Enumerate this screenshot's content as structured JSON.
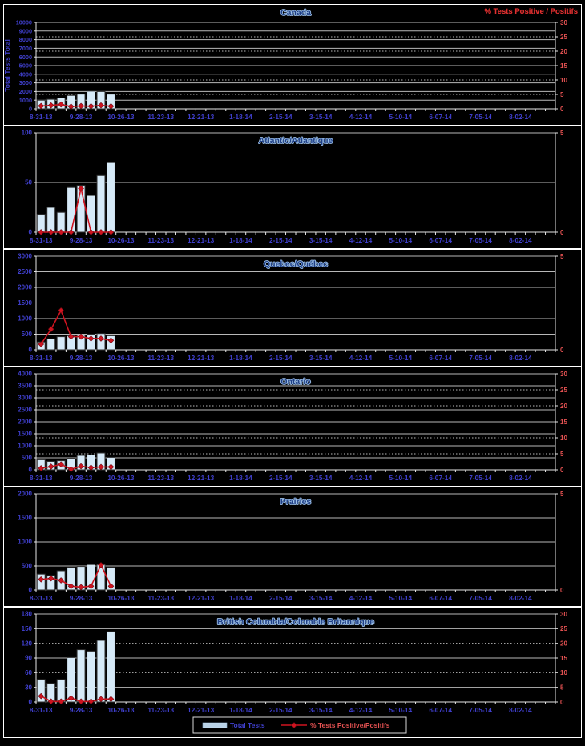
{
  "colors": {
    "background": "#000000",
    "panel_border": "#ffffff",
    "grid": "#b9b9b9",
    "bar_fill": "#d6eaf8",
    "bar_stroke": "#2e2e2e",
    "line": "#cf1420",
    "left_label": "#4040cf",
    "right_label": "#e65252",
    "title": "#1f3f85",
    "right_axis_title": "#e03030"
  },
  "axis_titles": {
    "left": "Total Tests Total",
    "right": "% Tests Positive / Positifs"
  },
  "legend": {
    "bar_label": "Total Tests",
    "line_label": "% Tests Positive/Positifs"
  },
  "x_axis": {
    "n_ticks": 52,
    "label_every": 4,
    "labels": [
      "8-31-13",
      "9-28-13",
      "10-26-13",
      "11-23-13",
      "12-21-13",
      "1-18-14",
      "2-15-14",
      "3-15-14",
      "4-12-14",
      "5-10-14",
      "6-07-14",
      "7-05-14",
      "8-02-14"
    ]
  },
  "chart_data": [
    {
      "type": "bar",
      "title": "Canada",
      "height": 150,
      "left_axis": {
        "min": 0,
        "max": 10000,
        "step": 1000
      },
      "right_axis": {
        "min": 0,
        "max": 30,
        "step": 5,
        "show": "all"
      },
      "bars": [
        1000,
        1100,
        1250,
        1550,
        1700,
        2050,
        2000,
        1700
      ],
      "pct_positive": [
        1.0,
        1.2,
        1.5,
        0.8,
        1.0,
        0.9,
        1.2,
        0.9
      ],
      "dotted_right_values": [
        5,
        10,
        20,
        25
      ],
      "left_title": true,
      "right_title": true
    },
    {
      "type": "bar",
      "title": "Atlantic/Atlantique",
      "height": 152,
      "left_axis": {
        "min": 0,
        "max": 100,
        "step": 50
      },
      "right_axis": {
        "min": 0,
        "max": 5,
        "step": 5,
        "show": "ends"
      },
      "bars": [
        18,
        25,
        20,
        45,
        47,
        37,
        57,
        70
      ],
      "pct_positive": [
        0,
        0,
        0,
        0,
        2.2,
        0,
        0,
        0
      ]
    },
    {
      "type": "bar",
      "title": "Quebec/Québec",
      "height": 145,
      "left_axis": {
        "min": 0,
        "max": 3000,
        "step": 500
      },
      "right_axis": {
        "min": 0,
        "max": 5,
        "step": 5,
        "show": "ends"
      },
      "bars": [
        250,
        350,
        420,
        450,
        470,
        500,
        520,
        450
      ],
      "pct_positive": [
        0.3,
        1.1,
        2.1,
        0.7,
        0.7,
        0.6,
        0.6,
        0.5
      ]
    },
    {
      "type": "bar",
      "title": "Ontario",
      "height": 148,
      "left_axis": {
        "min": 0,
        "max": 4000,
        "step": 500
      },
      "right_axis": {
        "min": 0,
        "max": 30,
        "step": 5,
        "show": "all"
      },
      "bars": [
        420,
        350,
        380,
        480,
        600,
        620,
        700,
        520
      ],
      "pct_positive": [
        0.5,
        1.0,
        1.7,
        0.2,
        1.1,
        0.7,
        0.9,
        0.9
      ],
      "dotted_right_values": [
        5,
        10,
        20,
        25
      ]
    },
    {
      "type": "bar",
      "title": "Prairies",
      "height": 148,
      "left_axis": {
        "min": 0,
        "max": 2000,
        "step": 500
      },
      "right_axis": {
        "min": 0,
        "max": 5,
        "step": 5,
        "show": "ends"
      },
      "bars": [
        330,
        300,
        400,
        470,
        490,
        530,
        530,
        470
      ],
      "pct_positive": [
        0.55,
        0.6,
        0.5,
        0.2,
        0.15,
        0.2,
        1.3,
        0.2
      ]
    },
    {
      "type": "bar",
      "title": "British Columbia/Colombie Britannique",
      "height": 162,
      "left_axis": {
        "min": 0,
        "max": 180,
        "step": 30
      },
      "right_axis": {
        "min": 0,
        "max": 30,
        "step": 5,
        "show": "all"
      },
      "bars": [
        46,
        38,
        46,
        91,
        107,
        104,
        126,
        144
      ],
      "pct_positive": [
        2.0,
        0.2,
        0.2,
        1.3,
        0.2,
        0.2,
        1.0,
        1.0
      ],
      "dotted_left_values": [
        60,
        120
      ],
      "legend": true
    }
  ]
}
